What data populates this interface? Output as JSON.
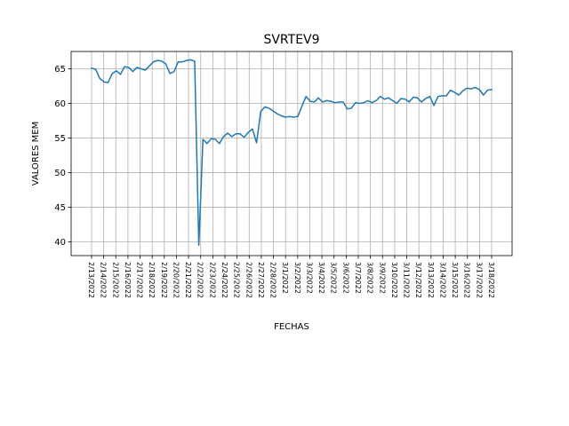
{
  "chart_data": {
    "type": "line",
    "title": "SVRTEV9",
    "xlabel": "FECHAS",
    "ylabel": "VALORES MEM",
    "ylim": [
      38,
      67.5
    ],
    "yticks": [
      40,
      45,
      50,
      55,
      60,
      65
    ],
    "grid": true,
    "x_tick_labels": [
      "2/13/2022",
      "2/14/2022",
      "2/15/2022",
      "2/16/2022",
      "2/17/2022",
      "2/18/2022",
      "2/19/2022",
      "2/20/2022",
      "2/21/2022",
      "2/22/2022",
      "2/23/2022",
      "2/24/2022",
      "2/25/2022",
      "2/26/2022",
      "2/27/2022",
      "2/28/2022",
      "3/1/2022",
      "3/2/2022",
      "3/3/2022",
      "3/4/2022",
      "3/5/2022",
      "3/6/2022",
      "3/7/2022",
      "3/8/2022",
      "3/9/2022",
      "3/10/2022",
      "3/11/2022",
      "3/12/2022",
      "3/13/2022",
      "3/14/2022",
      "3/15/2022",
      "3/16/2022",
      "3/17/2022",
      "3/18/2022"
    ],
    "series": [
      {
        "color": "#1f77b4",
        "values": [
          65.1,
          64.9,
          63.6,
          63.1,
          63.0,
          64.3,
          64.7,
          64.2,
          65.3,
          65.2,
          64.6,
          65.2,
          65.0,
          64.8,
          65.4,
          66.0,
          66.2,
          66.1,
          65.7,
          64.3,
          64.6,
          66.0,
          66.0,
          66.2,
          66.3,
          66.1,
          39.5,
          54.8,
          54.2,
          54.9,
          54.8,
          54.2,
          55.2,
          55.7,
          55.2,
          55.6,
          55.6,
          55.1,
          55.8,
          56.3,
          54.3,
          58.8,
          59.5,
          59.3,
          58.9,
          58.5,
          58.2,
          58.0,
          58.1,
          58.0,
          58.1,
          59.6,
          61.0,
          60.3,
          60.2,
          60.8,
          60.2,
          60.4,
          60.3,
          60.1,
          60.2,
          60.2,
          59.2,
          59.3,
          60.1,
          60.0,
          60.1,
          60.4,
          60.1,
          60.4,
          61.0,
          60.6,
          60.8,
          60.4,
          60.0,
          60.7,
          60.6,
          60.2,
          60.9,
          60.8,
          60.2,
          60.7,
          61.0,
          59.7,
          61.0,
          61.1,
          61.1,
          61.9,
          61.6,
          61.2,
          61.8,
          62.2,
          62.1,
          62.3,
          62.0,
          61.2,
          61.9,
          62.0
        ]
      }
    ]
  }
}
